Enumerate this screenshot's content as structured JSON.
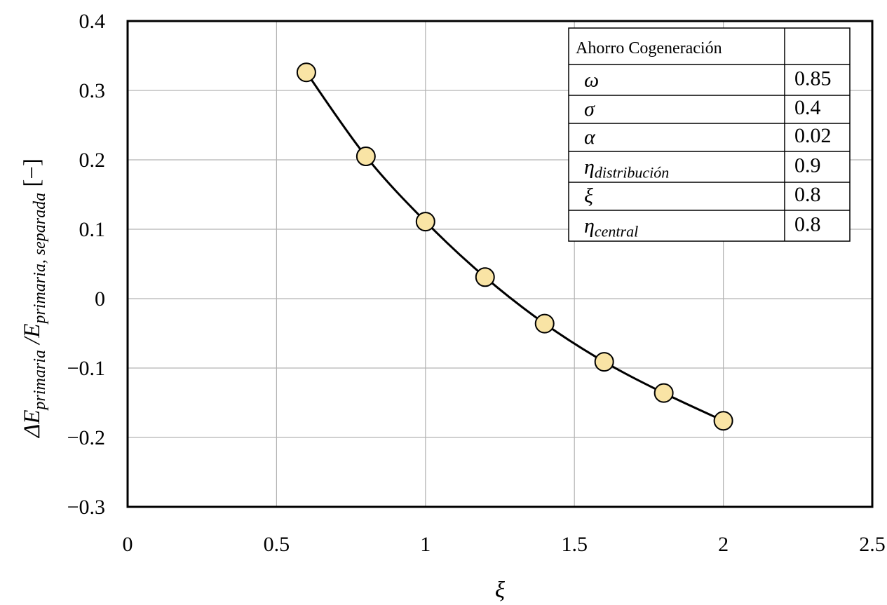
{
  "chart_data": {
    "type": "line",
    "x": [
      0.6,
      0.8,
      1.0,
      1.2,
      1.4,
      1.6,
      1.8,
      2.0
    ],
    "series": [
      {
        "values": [
          0.326,
          0.205,
          0.111,
          0.031,
          -0.036,
          -0.091,
          -0.136,
          -0.176
        ]
      }
    ],
    "xlim": [
      0,
      2.5
    ],
    "ylim": [
      -0.3,
      0.4
    ],
    "x_ticks": [
      0,
      0.5,
      1,
      1.5,
      2,
      2.5
    ],
    "x_tick_labels": [
      "0",
      "0.5",
      "1",
      "1.5",
      "2",
      "2.5"
    ],
    "y_ticks": [
      -0.3,
      -0.2,
      -0.1,
      0,
      0.1,
      0.2,
      0.3,
      0.4
    ],
    "y_tick_labels": [
      "−0.3",
      "−0.2",
      "−0.1",
      "0",
      "0.1",
      "0.2",
      "0.3",
      "0.4"
    ],
    "xlabel": "ξ",
    "ylabel": {
      "main1": "ΔE",
      "sub1": "primaria",
      "sep": " /E",
      "sub2": "primaria, separada",
      "unit": " [−]"
    },
    "grid": true,
    "marker_color": "#F9E4A5",
    "line_color": "#000000",
    "grid_color": "#B3B3B3",
    "legend_table": {
      "position": "top-right",
      "title": "Ahorro Cogeneración",
      "rows": [
        {
          "symbol": "ω",
          "sub": "",
          "value": "0.85"
        },
        {
          "symbol": "σ",
          "sub": "",
          "value": "0.4"
        },
        {
          "symbol": "α",
          "sub": "",
          "value": "0.02"
        },
        {
          "symbol": "η",
          "sub": "distribución",
          "value": "0.9"
        },
        {
          "symbol": "ξ",
          "sub": "",
          "value": "0.8"
        },
        {
          "symbol": "η",
          "sub": "central",
          "value": "0.8"
        }
      ]
    }
  }
}
